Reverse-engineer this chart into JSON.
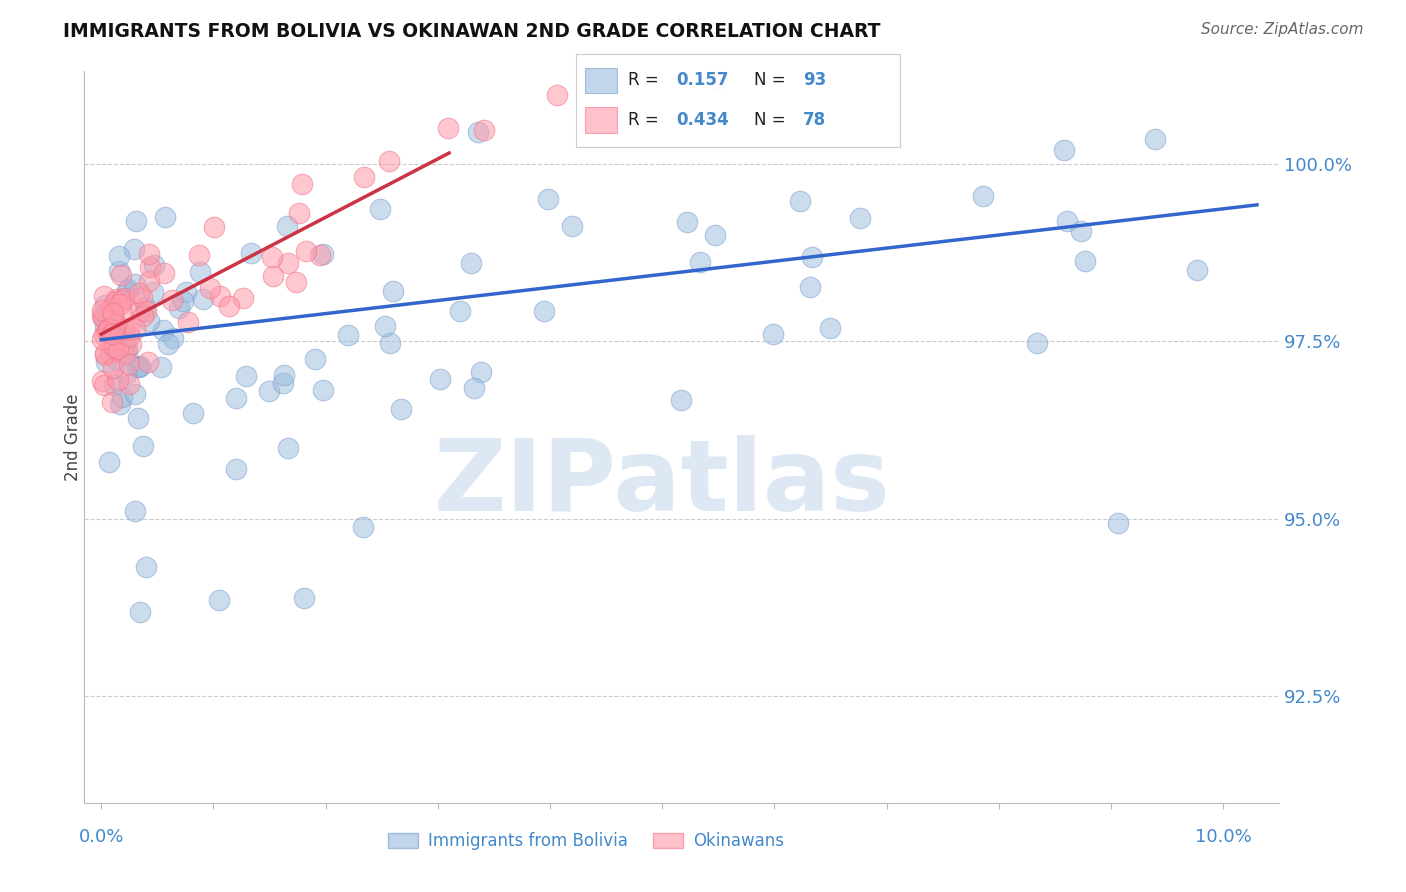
{
  "title": "IMMIGRANTS FROM BOLIVIA VS OKINAWAN 2ND GRADE CORRELATION CHART",
  "source": "Source: ZipAtlas.com",
  "ylabel": "2nd Grade",
  "y_ticks": [
    92.5,
    95.0,
    97.5,
    100.0
  ],
  "y_tick_labels": [
    "92.5%",
    "95.0%",
    "97.5%",
    "100.0%"
  ],
  "xlim": [
    -0.15,
    10.5
  ],
  "ylim": [
    91.0,
    101.3
  ],
  "blue_color": "#99BBDD",
  "pink_color": "#FF99AA",
  "blue_edge": "#7799CC",
  "pink_edge": "#EE7788",
  "trend_blue": "#3366CC",
  "trend_pink": "#CC3344",
  "watermark": "ZIPatlas",
  "watermark_color": "#C8D8EE",
  "background_color": "#FFFFFF",
  "grid_color": "#CCCCCC",
  "tick_label_color": "#4488CC",
  "legend_r1_num": "0.157",
  "legend_n1": "93",
  "legend_r2_num": "0.434",
  "legend_n2": "78",
  "blue_trend_x": [
    0.0,
    10.3
  ],
  "blue_trend_y": [
    97.52,
    99.42
  ],
  "pink_trend_x": [
    0.0,
    3.1
  ],
  "pink_trend_y": [
    97.6,
    100.15
  ]
}
